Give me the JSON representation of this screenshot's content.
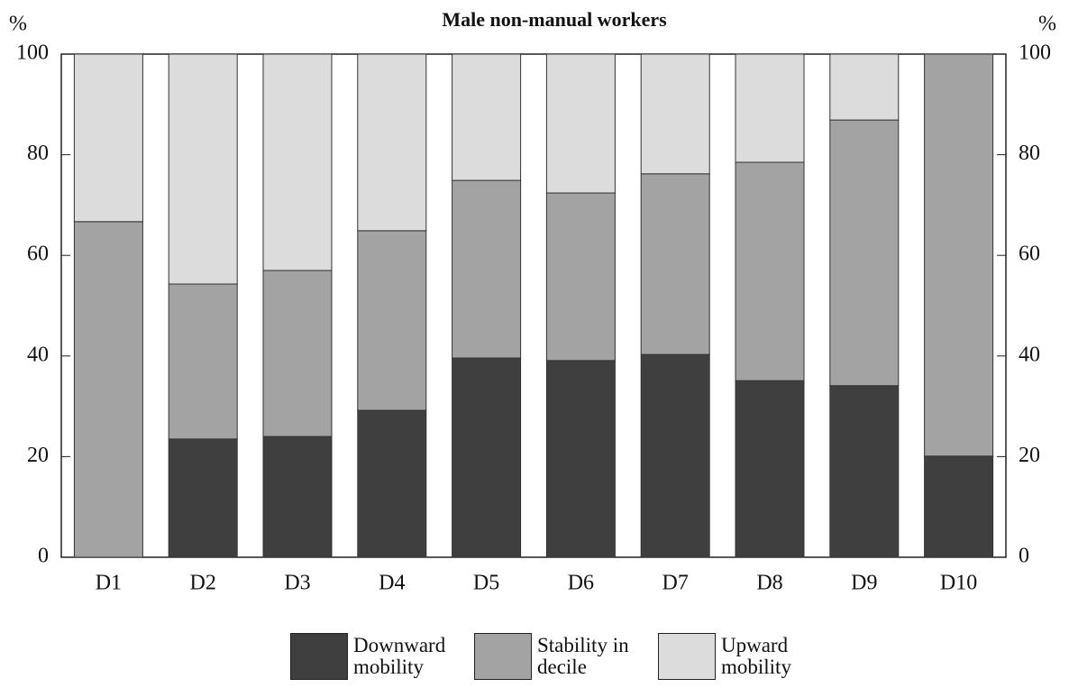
{
  "chart_data": {
    "type": "stacked_bar",
    "title": "Male non-manual workers",
    "y_label": "%",
    "y2_label": "%",
    "categories": [
      "D1",
      "D2",
      "D3",
      "D4",
      "D5",
      "D6",
      "D7",
      "D8",
      "D9",
      "D10"
    ],
    "series": [
      {
        "name": "Downward mobility",
        "color": "#3f3f3f",
        "values": [
          0,
          23.5,
          24.0,
          29.2,
          39.6,
          39.1,
          40.3,
          35.1,
          34.1,
          20.1
        ]
      },
      {
        "name": "Stability in decile",
        "color": "#a3a3a3",
        "values": [
          66.7,
          30.8,
          33.0,
          35.7,
          35.3,
          33.3,
          35.9,
          43.4,
          52.8,
          79.9
        ]
      },
      {
        "name": "Upward mobility",
        "color": "#dcdcdc",
        "values": [
          33.3,
          45.7,
          43.0,
          35.1,
          25.1,
          27.6,
          23.8,
          21.5,
          13.1,
          0
        ]
      }
    ],
    "ylim": [
      0,
      100
    ],
    "yticks": [
      0,
      20,
      40,
      60,
      80,
      100
    ],
    "y2lim": [
      0,
      100
    ],
    "y2ticks": [
      0,
      20,
      40,
      60,
      80,
      100
    ]
  }
}
